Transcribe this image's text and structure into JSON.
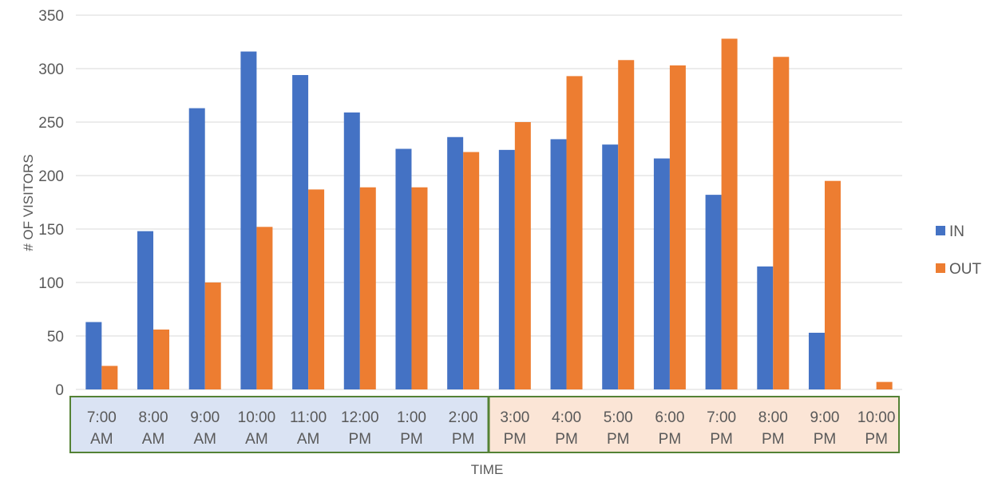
{
  "chart_data": {
    "type": "bar",
    "categories": [
      "7:00 AM",
      "8:00 AM",
      "9:00 AM",
      "10:00 AM",
      "11:00 AM",
      "12:00 PM",
      "1:00 PM",
      "2:00 PM",
      "3:00 PM",
      "4:00 PM",
      "5:00 PM",
      "6:00 PM",
      "7:00 PM",
      "8:00 PM",
      "9:00 PM",
      "10:00 PM"
    ],
    "category_lines": [
      [
        "7:00",
        "AM"
      ],
      [
        "8:00",
        "AM"
      ],
      [
        "9:00",
        "AM"
      ],
      [
        "10:00",
        "AM"
      ],
      [
        "11:00",
        "AM"
      ],
      [
        "12:00",
        "PM"
      ],
      [
        "1:00",
        "PM"
      ],
      [
        "2:00",
        "PM"
      ],
      [
        "3:00",
        "PM"
      ],
      [
        "4:00",
        "PM"
      ],
      [
        "5:00",
        "PM"
      ],
      [
        "6:00",
        "PM"
      ],
      [
        "7:00",
        "PM"
      ],
      [
        "8:00",
        "PM"
      ],
      [
        "9:00",
        "PM"
      ],
      [
        "10:00",
        "PM"
      ]
    ],
    "series": [
      {
        "name": "IN",
        "color": "#4472C4",
        "values": [
          63,
          148,
          263,
          316,
          294,
          259,
          225,
          236,
          224,
          234,
          229,
          216,
          182,
          115,
          53,
          0
        ]
      },
      {
        "name": "OUT",
        "color": "#ED7D31",
        "values": [
          22,
          56,
          100,
          152,
          187,
          189,
          189,
          222,
          250,
          293,
          308,
          303,
          328,
          311,
          195,
          7
        ]
      }
    ],
    "xlabel": "TIME",
    "ylabel": "# OF VISITORS",
    "ylim": [
      0,
      350
    ],
    "yticks": [
      0,
      50,
      100,
      150,
      200,
      250,
      300,
      350
    ],
    "grid": true,
    "legend_position": "right",
    "category_groups": [
      {
        "from": 0,
        "to": 7,
        "fill": "#DAE3F3",
        "border": "#548235"
      },
      {
        "from": 8,
        "to": 15,
        "fill": "#FBE5D6",
        "border": "#548235"
      }
    ]
  }
}
